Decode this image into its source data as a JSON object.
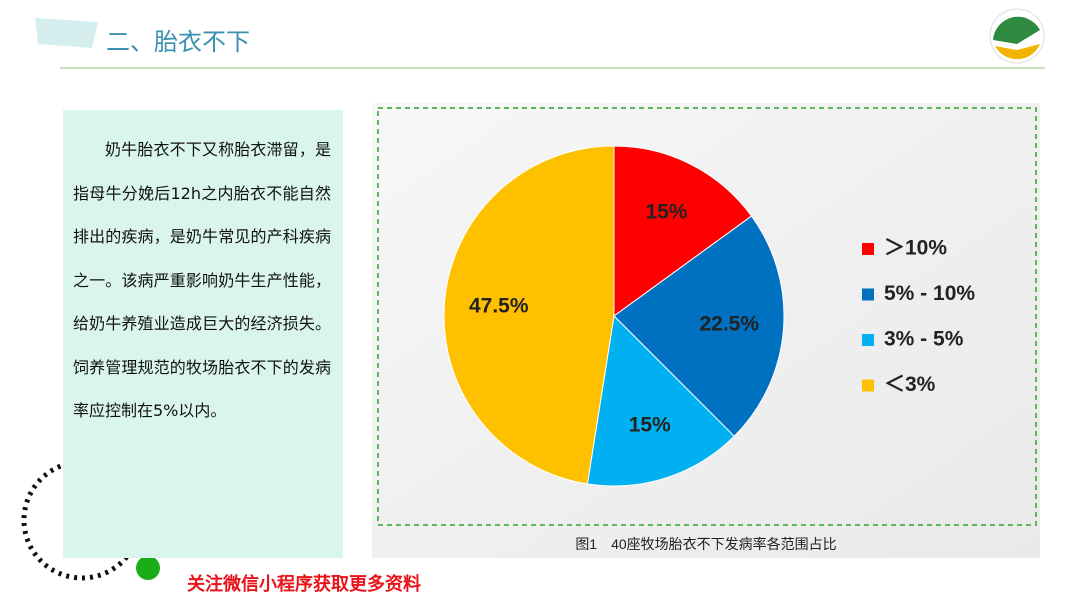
{
  "header": {
    "title": "二、胎衣不下"
  },
  "body": {
    "text": "奶牛胎衣不下又称胎衣滞留，是指母牛分娩后12h之内胎衣不能自然排出的疾病，是奶牛常见的产科疾病之一。该病严重影响奶牛生产性能，给奶牛养殖业造成巨大的经济损失。饲养管理规范的牧场胎衣不下的发病率应控制在5%以内。"
  },
  "chart_data": {
    "type": "pie",
    "categories": [
      "＞10%",
      "5% - 10%",
      "3% - 5%",
      "＜3%"
    ],
    "values": [
      15,
      22.5,
      15,
      47.5
    ],
    "value_labels": [
      "15%",
      "22.5%",
      "15%",
      "47.5%"
    ],
    "colors": [
      "#ff0000",
      "#0070c0",
      "#00b0f0",
      "#ffc000"
    ],
    "caption": "图1　40座牧场胎衣不下发病率各范围占比"
  },
  "footer": {
    "text": "关注微信小程序获取更多资料"
  }
}
